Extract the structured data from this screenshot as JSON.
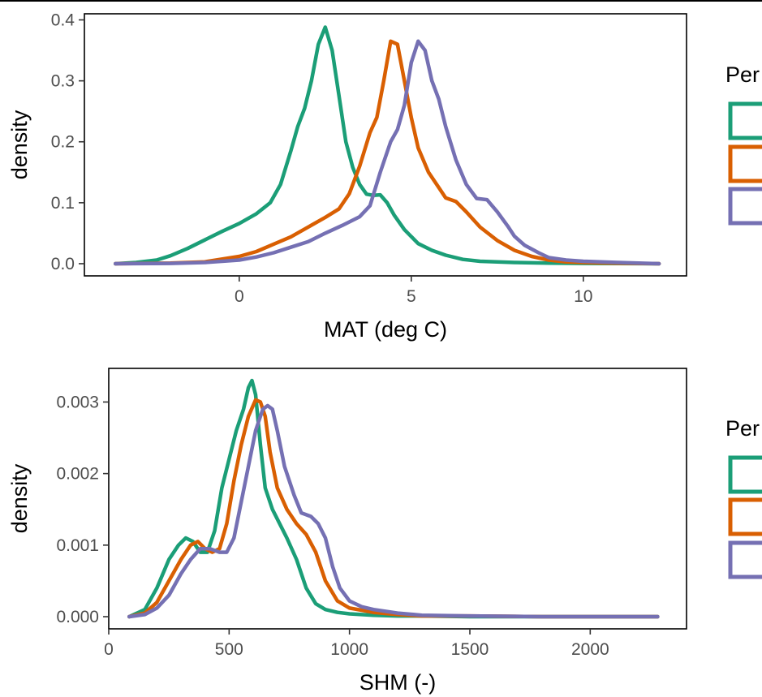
{
  "chart_data": [
    {
      "type": "line",
      "xlabel": "MAT (deg C)",
      "ylabel": "density",
      "xlim": [
        -4.5,
        13
      ],
      "ylim": [
        -0.02,
        0.41
      ],
      "xticks": [
        0,
        5,
        10
      ],
      "xtick_labels": [
        "0",
        "5",
        "10"
      ],
      "yticks": [
        0.0,
        0.1,
        0.2,
        0.3,
        0.4
      ],
      "ytick_labels": [
        "0.0",
        "0.1",
        "0.2",
        "0.3",
        "0.4"
      ],
      "grid": false,
      "legend_title": "Per",
      "legend_placement": "right",
      "series": [
        {
          "color": "#1b9e77",
          "x": [
            -3.6,
            -3.0,
            -2.4,
            -2.0,
            -1.5,
            -1.0,
            -0.5,
            0.0,
            0.5,
            0.9,
            1.2,
            1.5,
            1.7,
            1.9,
            2.1,
            2.3,
            2.5,
            2.7,
            2.9,
            3.1,
            3.3,
            3.5,
            3.7,
            3.9,
            4.1,
            4.3,
            4.5,
            4.8,
            5.2,
            5.6,
            6.0,
            6.5,
            7.0,
            8.0,
            9.0,
            10.0,
            11.0,
            12.2
          ],
          "y": [
            0.0,
            0.002,
            0.006,
            0.013,
            0.025,
            0.039,
            0.053,
            0.066,
            0.082,
            0.1,
            0.13,
            0.185,
            0.225,
            0.255,
            0.3,
            0.36,
            0.388,
            0.35,
            0.275,
            0.2,
            0.158,
            0.13,
            0.114,
            0.112,
            0.113,
            0.1,
            0.08,
            0.056,
            0.033,
            0.022,
            0.014,
            0.007,
            0.004,
            0.002,
            0.001,
            0.0005,
            0.0002,
            0.0
          ]
        },
        {
          "color": "#d95f02",
          "x": [
            -3.6,
            -2.0,
            -1.0,
            0.0,
            0.5,
            1.0,
            1.5,
            2.0,
            2.5,
            2.9,
            3.2,
            3.5,
            3.8,
            4.0,
            4.2,
            4.4,
            4.6,
            4.8,
            5.0,
            5.2,
            5.5,
            5.8,
            6.0,
            6.3,
            6.6,
            7.0,
            7.5,
            8.0,
            8.5,
            9.0,
            9.5,
            10.0,
            11.0,
            12.2
          ],
          "y": [
            0.0,
            0.001,
            0.003,
            0.012,
            0.02,
            0.032,
            0.044,
            0.06,
            0.076,
            0.09,
            0.115,
            0.16,
            0.215,
            0.24,
            0.3,
            0.365,
            0.36,
            0.3,
            0.24,
            0.19,
            0.15,
            0.125,
            0.108,
            0.102,
            0.085,
            0.06,
            0.038,
            0.022,
            0.012,
            0.006,
            0.003,
            0.002,
            0.0008,
            0.0
          ]
        },
        {
          "color": "#7570b3",
          "x": [
            -3.6,
            -2.0,
            -1.0,
            0.0,
            0.5,
            1.0,
            1.5,
            2.0,
            2.5,
            3.0,
            3.5,
            3.8,
            4.1,
            4.4,
            4.6,
            4.8,
            5.0,
            5.2,
            5.4,
            5.6,
            5.8,
            6.0,
            6.3,
            6.6,
            6.9,
            7.2,
            7.5,
            7.8,
            8.0,
            8.3,
            8.7,
            9.0,
            9.5,
            10.0,
            11.0,
            12.2
          ],
          "y": [
            0.0,
            0.0005,
            0.002,
            0.006,
            0.011,
            0.018,
            0.027,
            0.036,
            0.05,
            0.063,
            0.077,
            0.095,
            0.15,
            0.2,
            0.22,
            0.26,
            0.33,
            0.365,
            0.35,
            0.3,
            0.27,
            0.225,
            0.17,
            0.13,
            0.107,
            0.105,
            0.085,
            0.062,
            0.045,
            0.03,
            0.018,
            0.01,
            0.006,
            0.004,
            0.002,
            0.0
          ]
        }
      ]
    },
    {
      "type": "line",
      "xlabel": "SHM (-)",
      "ylabel": "density",
      "xlim": [
        0,
        2400
      ],
      "ylim": [
        -0.00017,
        0.00347
      ],
      "xticks": [
        0,
        500,
        1000,
        1500,
        2000
      ],
      "xtick_labels": [
        "0",
        "500",
        "1000",
        "1500",
        "2000"
      ],
      "yticks": [
        0.0,
        0.001,
        0.002,
        0.003
      ],
      "ytick_labels": [
        "0.000",
        "0.001",
        "0.002",
        "0.003"
      ],
      "grid": false,
      "legend_title": "Per",
      "legend_placement": "right",
      "series": [
        {
          "color": "#1b9e77",
          "x": [
            85,
            150,
            200,
            250,
            290,
            320,
            350,
            380,
            410,
            440,
            470,
            500,
            530,
            560,
            580,
            595,
            610,
            630,
            650,
            680,
            710,
            740,
            780,
            820,
            860,
            900,
            950,
            1000,
            1100,
            1200,
            1300,
            1500,
            1800,
            2280
          ],
          "y": [
            0.0,
            0.0001,
            0.0004,
            0.0008,
            0.001,
            0.0011,
            0.00105,
            0.0009,
            0.0009,
            0.0012,
            0.0018,
            0.0022,
            0.0026,
            0.0029,
            0.0032,
            0.0033,
            0.0031,
            0.0024,
            0.0018,
            0.0015,
            0.0013,
            0.0011,
            0.0008,
            0.0004,
            0.00018,
            0.0001,
            6e-05,
            4e-05,
            2e-05,
            1e-05,
            1e-05,
            0.0,
            0.0,
            0.0
          ]
        },
        {
          "color": "#d95f02",
          "x": [
            85,
            150,
            200,
            250,
            300,
            340,
            370,
            400,
            430,
            460,
            490,
            520,
            550,
            580,
            610,
            630,
            650,
            670,
            700,
            740,
            780,
            820,
            860,
            900,
            950,
            1000,
            1100,
            1200,
            1300,
            1500,
            1800,
            2280
          ],
          "y": [
            0.0,
            5e-05,
            0.0002,
            0.0005,
            0.0008,
            0.001,
            0.00105,
            0.00095,
            0.0009,
            0.00095,
            0.0013,
            0.0019,
            0.0024,
            0.0028,
            0.00303,
            0.003,
            0.0028,
            0.0023,
            0.0018,
            0.0015,
            0.0013,
            0.00115,
            0.0009,
            0.0005,
            0.00022,
            0.00012,
            6e-05,
            3e-05,
            1e-05,
            1e-05,
            0.0,
            0.0
          ]
        },
        {
          "color": "#7570b3",
          "x": [
            85,
            150,
            200,
            250,
            300,
            340,
            380,
            420,
            460,
            490,
            520,
            550,
            580,
            610,
            640,
            660,
            680,
            700,
            730,
            770,
            800,
            840,
            870,
            900,
            930,
            960,
            1000,
            1050,
            1100,
            1200,
            1300,
            1500,
            1800,
            2280
          ],
          "y": [
            0.0,
            3e-05,
            0.00012,
            0.0003,
            0.0006,
            0.0008,
            0.00095,
            0.00095,
            0.0009,
            0.0009,
            0.0011,
            0.0016,
            0.0021,
            0.0026,
            0.0029,
            0.00295,
            0.0029,
            0.0026,
            0.0021,
            0.0017,
            0.00145,
            0.0014,
            0.0013,
            0.0011,
            0.0007,
            0.0004,
            0.00022,
            0.00014,
            0.0001,
            5e-05,
            2e-05,
            1e-05,
            0.0,
            0.0
          ]
        }
      ]
    }
  ]
}
